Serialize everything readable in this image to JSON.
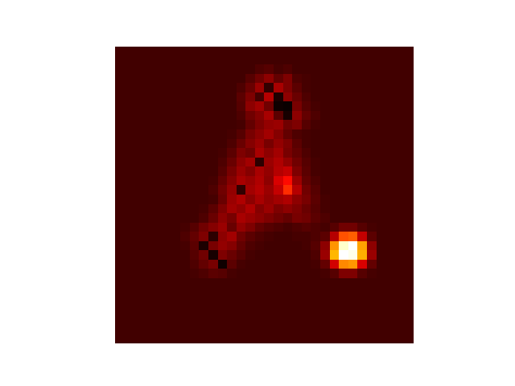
{
  "chart_data": {
    "type": "heatmap",
    "color": "hot",
    "tick_labels": false,
    "cells": [
      [
        11,
        11,
        11,
        11,
        11,
        11,
        11,
        11,
        11,
        11,
        11,
        11,
        11,
        11,
        11,
        11,
        11,
        11,
        11,
        11,
        11,
        11,
        11,
        11,
        11,
        11,
        11,
        11,
        11,
        11,
        11,
        11
      ],
      [
        11,
        11,
        11,
        11,
        11,
        11,
        11,
        11,
        11,
        11,
        11,
        11,
        11,
        11,
        11,
        11,
        11,
        11,
        11,
        11,
        11,
        11,
        11,
        11,
        11,
        11,
        11,
        11,
        11,
        11,
        11,
        11
      ],
      [
        11,
        11,
        11,
        11,
        11,
        11,
        11,
        11,
        11,
        11,
        11,
        11,
        11,
        11,
        11,
        13,
        14,
        12,
        13,
        11,
        11,
        11,
        11,
        11,
        11,
        11,
        11,
        11,
        11,
        11,
        11,
        11
      ],
      [
        11,
        11,
        11,
        11,
        11,
        11,
        11,
        11,
        11,
        11,
        11,
        11,
        11,
        11,
        14,
        18,
        22,
        16,
        20,
        13,
        12,
        11,
        11,
        11,
        11,
        11,
        11,
        11,
        11,
        11,
        11,
        11
      ],
      [
        11,
        11,
        11,
        11,
        11,
        11,
        11,
        11,
        11,
        11,
        11,
        11,
        11,
        13,
        17,
        24,
        9,
        26,
        20,
        15,
        12,
        11,
        11,
        11,
        11,
        11,
        11,
        11,
        11,
        11,
        11,
        11
      ],
      [
        11,
        11,
        11,
        11,
        11,
        11,
        11,
        11,
        11,
        11,
        11,
        11,
        11,
        15,
        20,
        12,
        28,
        6,
        22,
        17,
        13,
        11,
        11,
        11,
        11,
        11,
        11,
        11,
        11,
        11,
        11,
        11
      ],
      [
        11,
        11,
        11,
        11,
        11,
        11,
        11,
        11,
        11,
        11,
        11,
        11,
        11,
        14,
        22,
        25,
        18,
        4,
        3,
        19,
        14,
        12,
        11,
        11,
        11,
        11,
        11,
        11,
        11,
        11,
        11,
        11
      ],
      [
        11,
        11,
        11,
        11,
        11,
        11,
        11,
        11,
        11,
        11,
        11,
        11,
        11,
        13,
        18,
        21,
        26,
        15,
        5,
        22,
        16,
        13,
        11,
        11,
        11,
        11,
        11,
        11,
        11,
        11,
        11,
        11
      ],
      [
        11,
        11,
        11,
        11,
        11,
        11,
        11,
        11,
        11,
        11,
        11,
        11,
        11,
        12,
        16,
        20,
        23,
        24,
        18,
        20,
        14,
        12,
        11,
        11,
        11,
        11,
        11,
        11,
        11,
        11,
        11,
        11
      ],
      [
        11,
        11,
        11,
        11,
        11,
        11,
        11,
        11,
        11,
        11,
        11,
        11,
        12,
        14,
        19,
        22,
        25,
        21,
        16,
        13,
        12,
        11,
        11,
        11,
        11,
        11,
        11,
        11,
        11,
        11,
        11,
        11
      ],
      [
        11,
        11,
        11,
        11,
        11,
        11,
        11,
        11,
        11,
        11,
        11,
        11,
        13,
        17,
        21,
        24,
        19,
        23,
        20,
        15,
        12,
        11,
        11,
        11,
        11,
        11,
        11,
        11,
        11,
        11,
        11,
        11
      ],
      [
        11,
        11,
        11,
        11,
        11,
        11,
        11,
        11,
        11,
        11,
        11,
        12,
        15,
        20,
        18,
        26,
        22,
        25,
        19,
        16,
        13,
        11,
        11,
        11,
        11,
        11,
        11,
        11,
        11,
        11,
        11,
        11
      ],
      [
        11,
        11,
        11,
        11,
        11,
        11,
        11,
        11,
        11,
        11,
        11,
        13,
        17,
        22,
        25,
        8,
        24,
        27,
        23,
        18,
        14,
        12,
        11,
        11,
        11,
        11,
        11,
        11,
        11,
        11,
        11,
        11
      ],
      [
        11,
        11,
        11,
        11,
        11,
        11,
        11,
        11,
        11,
        11,
        11,
        14,
        19,
        24,
        21,
        26,
        23,
        28,
        30,
        20,
        15,
        12,
        11,
        11,
        11,
        11,
        11,
        11,
        11,
        11,
        11,
        11
      ],
      [
        11,
        11,
        11,
        11,
        11,
        11,
        11,
        11,
        11,
        11,
        12,
        16,
        21,
        26,
        24,
        27,
        22,
        33,
        40,
        24,
        16,
        13,
        11,
        11,
        11,
        11,
        11,
        11,
        11,
        11,
        11,
        11
      ],
      [
        11,
        11,
        11,
        11,
        11,
        11,
        11,
        11,
        11,
        11,
        13,
        18,
        23,
        9,
        25,
        28,
        24,
        30,
        45,
        28,
        18,
        14,
        11,
        11,
        11,
        11,
        11,
        11,
        11,
        11,
        11,
        11
      ],
      [
        11,
        11,
        11,
        11,
        11,
        11,
        11,
        11,
        11,
        11,
        12,
        17,
        24,
        27,
        22,
        26,
        23,
        25,
        27,
        22,
        19,
        15,
        12,
        11,
        11,
        11,
        11,
        11,
        11,
        11,
        11,
        11
      ],
      [
        11,
        11,
        11,
        11,
        11,
        11,
        11,
        11,
        11,
        12,
        15,
        20,
        25,
        23,
        27,
        21,
        24,
        20,
        22,
        20,
        17,
        14,
        12,
        11,
        11,
        11,
        11,
        11,
        11,
        11,
        11,
        11
      ],
      [
        11,
        11,
        11,
        11,
        11,
        11,
        11,
        11,
        11,
        13,
        17,
        22,
        19,
        26,
        24,
        22,
        20,
        18,
        16,
        19,
        18,
        15,
        13,
        11,
        11,
        11,
        11,
        11,
        11,
        11,
        11,
        11
      ],
      [
        11,
        11,
        11,
        11,
        11,
        11,
        11,
        12,
        14,
        18,
        21,
        24,
        17,
        23,
        20,
        16,
        14,
        13,
        12,
        13,
        14,
        13,
        12,
        14,
        18,
        18,
        14,
        12,
        11,
        11,
        11,
        11
      ],
      [
        11,
        11,
        11,
        11,
        11,
        11,
        11,
        13,
        16,
        20,
        8,
        22,
        25,
        18,
        15,
        13,
        12,
        11,
        11,
        12,
        12,
        13,
        15,
        28,
        50,
        52,
        30,
        15,
        11,
        11,
        11,
        11
      ],
      [
        11,
        11,
        11,
        11,
        11,
        11,
        11,
        12,
        15,
        6,
        19,
        23,
        21,
        16,
        13,
        12,
        11,
        11,
        11,
        11,
        12,
        14,
        22,
        60,
        95,
        100,
        62,
        22,
        11,
        11,
        11,
        11
      ],
      [
        11,
        11,
        11,
        11,
        11,
        11,
        11,
        11,
        14,
        18,
        5,
        20,
        17,
        14,
        12,
        11,
        11,
        11,
        11,
        11,
        11,
        13,
        24,
        65,
        100,
        98,
        64,
        24,
        11,
        11,
        11,
        11
      ],
      [
        11,
        11,
        11,
        11,
        11,
        11,
        11,
        11,
        13,
        16,
        19,
        4,
        15,
        12,
        11,
        11,
        11,
        11,
        11,
        11,
        11,
        12,
        16,
        32,
        58,
        60,
        33,
        16,
        11,
        11,
        11,
        11
      ],
      [
        11,
        11,
        11,
        11,
        11,
        11,
        11,
        11,
        12,
        13,
        15,
        14,
        12,
        11,
        11,
        11,
        11,
        11,
        11,
        11,
        11,
        11,
        12,
        14,
        20,
        20,
        14,
        12,
        11,
        11,
        11,
        11
      ],
      [
        11,
        11,
        11,
        11,
        11,
        11,
        11,
        11,
        11,
        11,
        11,
        11,
        11,
        11,
        11,
        11,
        11,
        11,
        11,
        11,
        11,
        11,
        11,
        11,
        11,
        11,
        11,
        11,
        11,
        11,
        11,
        11
      ],
      [
        11,
        11,
        11,
        11,
        11,
        11,
        11,
        11,
        11,
        11,
        11,
        11,
        11,
        11,
        11,
        11,
        11,
        11,
        11,
        11,
        11,
        11,
        11,
        11,
        11,
        11,
        11,
        11,
        11,
        11,
        11,
        11
      ],
      [
        11,
        11,
        11,
        11,
        11,
        11,
        11,
        11,
        11,
        11,
        11,
        11,
        11,
        11,
        11,
        11,
        11,
        11,
        11,
        11,
        11,
        11,
        11,
        11,
        11,
        11,
        11,
        11,
        11,
        11,
        11,
        11
      ],
      [
        11,
        11,
        11,
        11,
        11,
        11,
        11,
        11,
        11,
        11,
        11,
        11,
        11,
        11,
        11,
        11,
        11,
        11,
        11,
        11,
        11,
        11,
        11,
        11,
        11,
        11,
        11,
        11,
        11,
        11,
        11,
        11
      ],
      [
        11,
        11,
        11,
        11,
        11,
        11,
        11,
        11,
        11,
        11,
        11,
        11,
        11,
        11,
        11,
        11,
        11,
        11,
        11,
        11,
        11,
        11,
        11,
        11,
        11,
        11,
        11,
        11,
        11,
        11,
        11,
        11
      ],
      [
        11,
        11,
        11,
        11,
        11,
        11,
        11,
        11,
        11,
        11,
        11,
        11,
        11,
        11,
        11,
        11,
        11,
        11,
        11,
        11,
        11,
        11,
        11,
        11,
        11,
        11,
        11,
        11,
        11,
        11,
        11,
        11
      ],
      [
        11,
        11,
        11,
        11,
        11,
        11,
        11,
        11,
        11,
        11,
        11,
        11,
        11,
        11,
        11,
        11,
        11,
        11,
        11,
        11,
        11,
        11,
        11,
        11,
        11,
        11,
        11,
        11,
        11,
        11,
        11,
        11
      ]
    ]
  }
}
